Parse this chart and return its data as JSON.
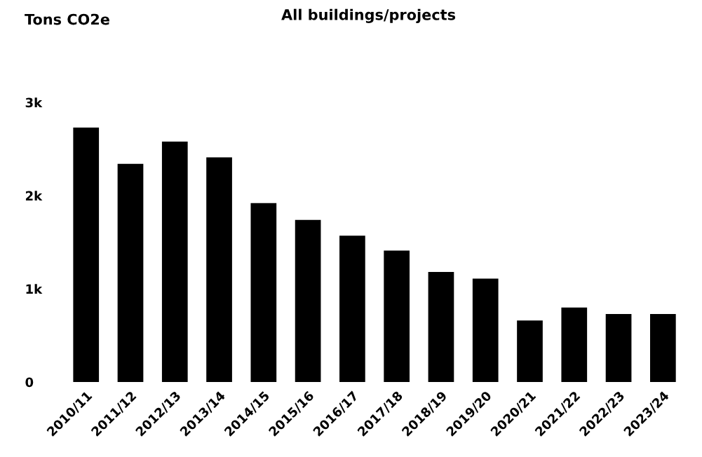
{
  "chart_data": {
    "type": "bar",
    "title": "All buildings/projects",
    "ylabel": "Tons CO2e",
    "categories": [
      "2010/11",
      "2011/12",
      "2012/13",
      "2013/14",
      "2014/15",
      "2015/16",
      "2016/17",
      "2017/18",
      "2018/19",
      "2019/20",
      "2020/21",
      "2021/22",
      "2022/23",
      "2023/24"
    ],
    "values": [
      2730,
      2340,
      2580,
      2410,
      1920,
      1740,
      1570,
      1410,
      1180,
      1110,
      660,
      800,
      730,
      730
    ],
    "color": "#000000",
    "ylim": [
      0,
      3000
    ],
    "yticks": [
      {
        "value": 0,
        "label": "0"
      },
      {
        "value": 1000,
        "label": "1k"
      },
      {
        "value": 2000,
        "label": "2k"
      },
      {
        "value": 3000,
        "label": "3k"
      }
    ],
    "grid": false
  }
}
